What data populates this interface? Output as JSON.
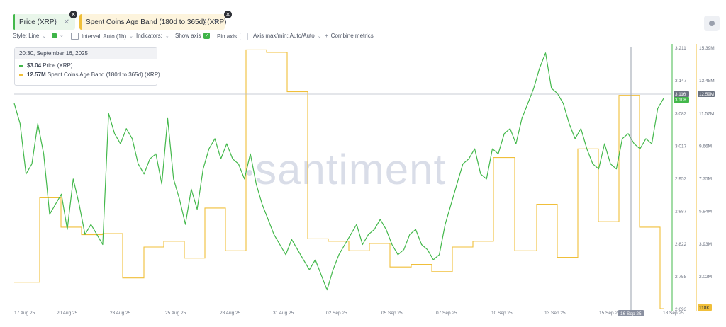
{
  "tabs": [
    {
      "label": "Price (XRP)",
      "color": "#43b84b"
    },
    {
      "label": "Spent Coins Age Band (180d to 365d) (XRP)",
      "color": "#f0bf3a"
    }
  ],
  "toolbar": {
    "style": "Style: Line",
    "interval": "Interval: Auto (1h)",
    "indicators": "Indicators:",
    "show_axis": "Show axis",
    "pin_axis": "Pin axis",
    "axis_maxmin": "Axis max/min: Auto/Auto",
    "combine": "Combine metrics"
  },
  "tooltip": {
    "date": "20:30, September 16, 2025",
    "price_value": "$3.04",
    "price_label": "Price (XRP)",
    "sca_value": "12.57M",
    "sca_label": "Spent Coins Age Band (180d to 365d) (XRP)"
  },
  "watermark": "santiment",
  "chart_data": {
    "type": "line",
    "x_ticks": [
      "17 Aug 25",
      "20 Aug 25",
      "23 Aug 25",
      "25 Aug 25",
      "28 Aug 25",
      "31 Aug 25",
      "02 Sep 25",
      "05 Sep 25",
      "07 Sep 25",
      "10 Sep 25",
      "13 Sep 25",
      "15 Sep 25",
      "16 Sep 25",
      "18 Sep 25"
    ],
    "price_axis": {
      "ticks": [
        "3.211",
        "3.147",
        "3.082",
        "3.017",
        "2.952",
        "2.887",
        "2.822",
        "2.758",
        "2.693"
      ],
      "range": [
        2.693,
        3.211
      ],
      "current": [
        "3.116",
        "3.108"
      ]
    },
    "sca_axis": {
      "ticks": [
        "15.39M",
        "13.48M",
        "11.57M",
        "9.66M",
        "7.75M",
        "5.84M",
        "3.93M",
        "2.02M",
        "118K"
      ],
      "range": [
        0.118,
        15.39
      ],
      "current": "12.59M"
    },
    "crosshair_label": "16 Sep 25",
    "series": [
      {
        "name": "Price (XRP)",
        "axis": "price",
        "color": "#43b84b",
        "values": [
          3.1,
          3.06,
          2.96,
          2.98,
          3.06,
          3.0,
          2.88,
          2.9,
          2.92,
          2.85,
          2.95,
          2.9,
          2.84,
          2.86,
          2.84,
          2.82,
          3.08,
          3.04,
          3.02,
          3.05,
          3.03,
          2.98,
          2.96,
          2.99,
          3.0,
          2.94,
          3.07,
          2.95,
          2.91,
          2.86,
          2.93,
          2.89,
          2.97,
          3.01,
          3.03,
          2.99,
          3.02,
          2.99,
          2.98,
          2.95,
          3.0,
          2.94,
          2.9,
          2.87,
          2.84,
          2.82,
          2.8,
          2.83,
          2.81,
          2.79,
          2.77,
          2.79,
          2.76,
          2.73,
          2.77,
          2.8,
          2.82,
          2.84,
          2.86,
          2.82,
          2.84,
          2.85,
          2.87,
          2.85,
          2.82,
          2.8,
          2.81,
          2.84,
          2.85,
          2.82,
          2.81,
          2.79,
          2.8,
          2.86,
          2.9,
          2.94,
          2.98,
          2.99,
          3.01,
          2.96,
          2.95,
          3.01,
          3.0,
          3.04,
          3.05,
          3.02,
          3.07,
          3.1,
          3.13,
          3.17,
          3.2,
          3.13,
          3.12,
          3.1,
          3.06,
          3.03,
          3.05,
          3.01,
          2.98,
          2.97,
          3.02,
          2.98,
          2.97,
          3.03,
          3.04,
          3.02,
          3.01,
          3.03,
          3.02,
          3.09,
          3.11
        ],
        "x_start": 20,
        "x_end": 936
      },
      {
        "name": "Spent Coins Age Band (180d to 365d) (XRP)",
        "axis": "sca",
        "color": "#f0bf3a",
        "steps": [
          {
            "x_start": 20,
            "x_end": 56,
            "value": 1.66
          },
          {
            "x_start": 56,
            "x_end": 86,
            "value": 6.6
          },
          {
            "x_start": 86,
            "x_end": 115,
            "value": 4.88
          },
          {
            "x_start": 115,
            "x_end": 145,
            "value": 4.44
          },
          {
            "x_start": 145,
            "x_end": 173,
            "value": 4.5
          },
          {
            "x_start": 173,
            "x_end": 203,
            "value": 1.91
          },
          {
            "x_start": 203,
            "x_end": 231,
            "value": 3.72
          },
          {
            "x_start": 231,
            "x_end": 260,
            "value": 4.06
          },
          {
            "x_start": 260,
            "x_end": 289,
            "value": 3.07
          },
          {
            "x_start": 289,
            "x_end": 318,
            "value": 6.0
          },
          {
            "x_start": 318,
            "x_end": 347,
            "value": 3.5
          },
          {
            "x_start": 347,
            "x_end": 376,
            "value": 15.25
          },
          {
            "x_start": 376,
            "x_end": 405,
            "value": 15.1
          },
          {
            "x_start": 405,
            "x_end": 434,
            "value": 12.8
          },
          {
            "x_start": 434,
            "x_end": 463,
            "value": 4.2
          },
          {
            "x_start": 463,
            "x_end": 492,
            "value": 4.06
          },
          {
            "x_start": 492,
            "x_end": 521,
            "value": 3.5
          },
          {
            "x_start": 521,
            "x_end": 550,
            "value": 3.93
          },
          {
            "x_start": 550,
            "x_end": 580,
            "value": 2.55
          },
          {
            "x_start": 580,
            "x_end": 609,
            "value": 2.7
          },
          {
            "x_start": 609,
            "x_end": 638,
            "value": 2.28
          },
          {
            "x_start": 638,
            "x_end": 667,
            "value": 3.72
          },
          {
            "x_start": 667,
            "x_end": 696,
            "value": 4.06
          },
          {
            "x_start": 696,
            "x_end": 726,
            "value": 8.95
          },
          {
            "x_start": 726,
            "x_end": 757,
            "value": 3.5
          },
          {
            "x_start": 757,
            "x_end": 786,
            "value": 6.22
          },
          {
            "x_start": 786,
            "x_end": 815,
            "value": 3.12
          },
          {
            "x_start": 815,
            "x_end": 844,
            "value": 9.46
          },
          {
            "x_start": 844,
            "x_end": 873,
            "value": 5.2
          },
          {
            "x_start": 873,
            "x_end": 902,
            "value": 12.59
          },
          {
            "x_start": 902,
            "x_end": 931,
            "value": 4.88
          },
          {
            "x_start": 931,
            "x_end": 936,
            "value": 0.118
          }
        ]
      }
    ]
  }
}
